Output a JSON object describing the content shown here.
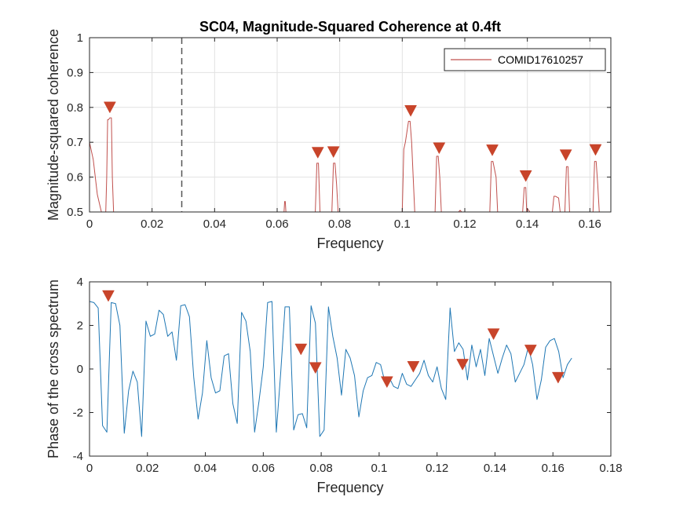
{
  "colors": {
    "coherence_line": "#c0504d",
    "phase_line": "#1f77b4",
    "marker": "#c8442a",
    "grid": "#e2e2e2",
    "axis": "#262626",
    "dashed": "#555555"
  },
  "chart_data": [
    {
      "type": "line",
      "title": "SC04, Magnitude-Squared Coherence at 0.4ft",
      "xlabel": "Frequency",
      "ylabel": "Magnitude-squared coherence",
      "xlim": [
        0,
        0.1667
      ],
      "ylim": [
        0.5,
        1
      ],
      "xticks": [
        "0",
        "0.02",
        "0.04",
        "0.06",
        "0.08",
        "0.1",
        "0.12",
        "0.14",
        "0.16"
      ],
      "yticks": [
        "0.5",
        "0.6",
        "0.7",
        "0.8",
        "0.9",
        "1"
      ],
      "grid": true,
      "legend_position": "top-right",
      "vline_x": 0.0295,
      "series": [
        {
          "name": "COMID17610257",
          "x": [
            0,
            0.0012,
            0.0025,
            0.0038,
            0.0045,
            0.0052,
            0.0055,
            0.0058,
            0.0061,
            0.0065,
            0.007,
            0.0073,
            0.0077,
            0.008,
            0.0622,
            0.0624,
            0.0626,
            0.0628,
            0.0722,
            0.0727,
            0.0732,
            0.0737,
            0.0775,
            0.078,
            0.0785,
            0.079,
            0.0795,
            0.1,
            0.1005,
            0.101,
            0.1015,
            0.102,
            0.1025,
            0.103,
            0.1035,
            0.104,
            0.1045,
            0.1105,
            0.111,
            0.1115,
            0.112,
            0.1125,
            0.118,
            0.1185,
            0.119,
            0.128,
            0.1285,
            0.129,
            0.13,
            0.1305,
            0.131,
            0.1385,
            0.139,
            0.1395,
            0.1398,
            0.14,
            0.1408,
            0.148,
            0.1485,
            0.149,
            0.15,
            0.1505,
            0.152,
            0.1525,
            0.153,
            0.1535,
            0.161,
            0.1615,
            0.162,
            0.1625,
            0.163
          ],
          "y": [
            0.7,
            0.65,
            0.55,
            0.5,
            0.5,
            0.5,
            0.6,
            0.765,
            0.765,
            0.77,
            0.77,
            0.6,
            0.5,
            0.5,
            0.5,
            0.53,
            0.53,
            0.5,
            0.5,
            0.64,
            0.64,
            0.5,
            0.5,
            0.64,
            0.64,
            0.58,
            0.5,
            0.5,
            0.68,
            0.7,
            0.73,
            0.76,
            0.76,
            0.7,
            0.6,
            0.5,
            0.5,
            0.5,
            0.66,
            0.66,
            0.6,
            0.5,
            0.5,
            0.505,
            0.5,
            0.5,
            0.645,
            0.645,
            0.6,
            0.5,
            0.5,
            0.5,
            0.57,
            0.57,
            0.5,
            0.51,
            0.5,
            0.5,
            0.545,
            0.545,
            0.54,
            0.5,
            0.5,
            0.63,
            0.63,
            0.5,
            0.5,
            0.645,
            0.645,
            0.58,
            0.5
          ]
        }
      ],
      "markers": {
        "x": [
          0.0065,
          0.073,
          0.078,
          0.1027,
          0.1118,
          0.1288,
          0.1395,
          0.1523,
          0.1618
        ],
        "y": [
          0.8,
          0.67,
          0.672,
          0.79,
          0.683,
          0.677,
          0.603,
          0.663,
          0.678
        ]
      }
    },
    {
      "type": "line",
      "title": "",
      "xlabel": "Frequency",
      "ylabel": "Phase of the cross spectrum",
      "xlim": [
        0,
        0.18
      ],
      "ylim": [
        -4,
        4
      ],
      "xticks": [
        "0",
        "0.02",
        "0.04",
        "0.06",
        "0.08",
        "0.1",
        "0.12",
        "0.14",
        "0.16",
        "0.18"
      ],
      "yticks": [
        "-4",
        "-2",
        "0",
        "2",
        "4"
      ],
      "grid": false,
      "series": [
        {
          "x": [
            0,
            0.0015,
            0.003,
            0.0045,
            0.006,
            0.0075,
            0.009,
            0.0105,
            0.012,
            0.0135,
            0.015,
            0.0165,
            0.018,
            0.0195,
            0.021,
            0.0225,
            0.024,
            0.0255,
            0.027,
            0.0285,
            0.03,
            0.0315,
            0.033,
            0.0345,
            0.036,
            0.0375,
            0.039,
            0.0405,
            0.042,
            0.0435,
            0.045,
            0.0465,
            0.048,
            0.0495,
            0.051,
            0.0525,
            0.054,
            0.0555,
            0.057,
            0.0585,
            0.06,
            0.0615,
            0.063,
            0.0645,
            0.066,
            0.0675,
            0.069,
            0.0705,
            0.072,
            0.0735,
            0.075,
            0.0765,
            0.078,
            0.0795,
            0.081,
            0.0825,
            0.084,
            0.0855,
            0.087,
            0.0885,
            0.09,
            0.0915,
            0.093,
            0.0945,
            0.096,
            0.0975,
            0.099,
            0.1005,
            0.102,
            0.1035,
            0.105,
            0.1065,
            0.108,
            0.1095,
            0.111,
            0.1125,
            0.114,
            0.1155,
            0.117,
            0.1185,
            0.12,
            0.1215,
            0.123,
            0.1245,
            0.126,
            0.1275,
            0.129,
            0.1305,
            0.132,
            0.1335,
            0.135,
            0.1365,
            0.138,
            0.1395,
            0.141,
            0.1425,
            0.144,
            0.1455,
            0.147,
            0.1485,
            0.15,
            0.1515,
            0.153,
            0.1545,
            0.156,
            0.1575,
            0.159,
            0.1605,
            0.162,
            0.1635,
            0.165,
            0.1665
          ],
          "y": [
            3.1,
            3.05,
            2.8,
            -2.6,
            -2.9,
            3.05,
            3.0,
            2.0,
            -2.95,
            -1.0,
            -0.1,
            -0.6,
            -3.1,
            2.2,
            1.5,
            1.6,
            2.7,
            2.5,
            1.5,
            1.7,
            0.4,
            2.9,
            2.95,
            2.4,
            -0.4,
            -2.3,
            -1.1,
            1.3,
            -0.4,
            -1.1,
            -1.0,
            0.6,
            0.7,
            -1.6,
            -2.5,
            2.6,
            2.2,
            0.8,
            -2.9,
            -1.5,
            0.1,
            3.05,
            3.1,
            -2.9,
            -0.2,
            2.85,
            2.85,
            -2.8,
            -2.1,
            -2.05,
            -2.7,
            2.9,
            2.1,
            -3.1,
            -2.8,
            2.85,
            1.5,
            0.5,
            -1.2,
            0.9,
            0.5,
            -0.3,
            -2.2,
            -1.0,
            -0.4,
            -0.3,
            0.3,
            0.2,
            -0.6,
            -0.4,
            -0.8,
            -0.9,
            -0.2,
            -0.7,
            -0.8,
            -0.5,
            -0.2,
            0.4,
            -0.3,
            -0.6,
            0.1,
            -0.9,
            -1.4,
            2.8,
            0.8,
            1.2,
            0.9,
            -0.5,
            1.1,
            0.1,
            0.9,
            -0.3,
            1.4,
            0.6,
            -0.2,
            0.5,
            1.1,
            0.7,
            -0.6,
            -0.2,
            0.2,
            1.0,
            0.2,
            -1.4,
            -0.5,
            1.0,
            1.3,
            1.4,
            0.8,
            -0.4,
            0.2,
            0.5
          ],
          "end_x": 0.1665
        }
      ],
      "markers": {
        "x": [
          0.0065,
          0.073,
          0.078,
          0.1027,
          0.1118,
          0.1288,
          0.1395,
          0.1523,
          0.1618
        ],
        "y": [
          3.35,
          0.9,
          0.05,
          -0.6,
          0.1,
          0.2,
          1.6,
          0.85,
          -0.4
        ]
      }
    }
  ]
}
